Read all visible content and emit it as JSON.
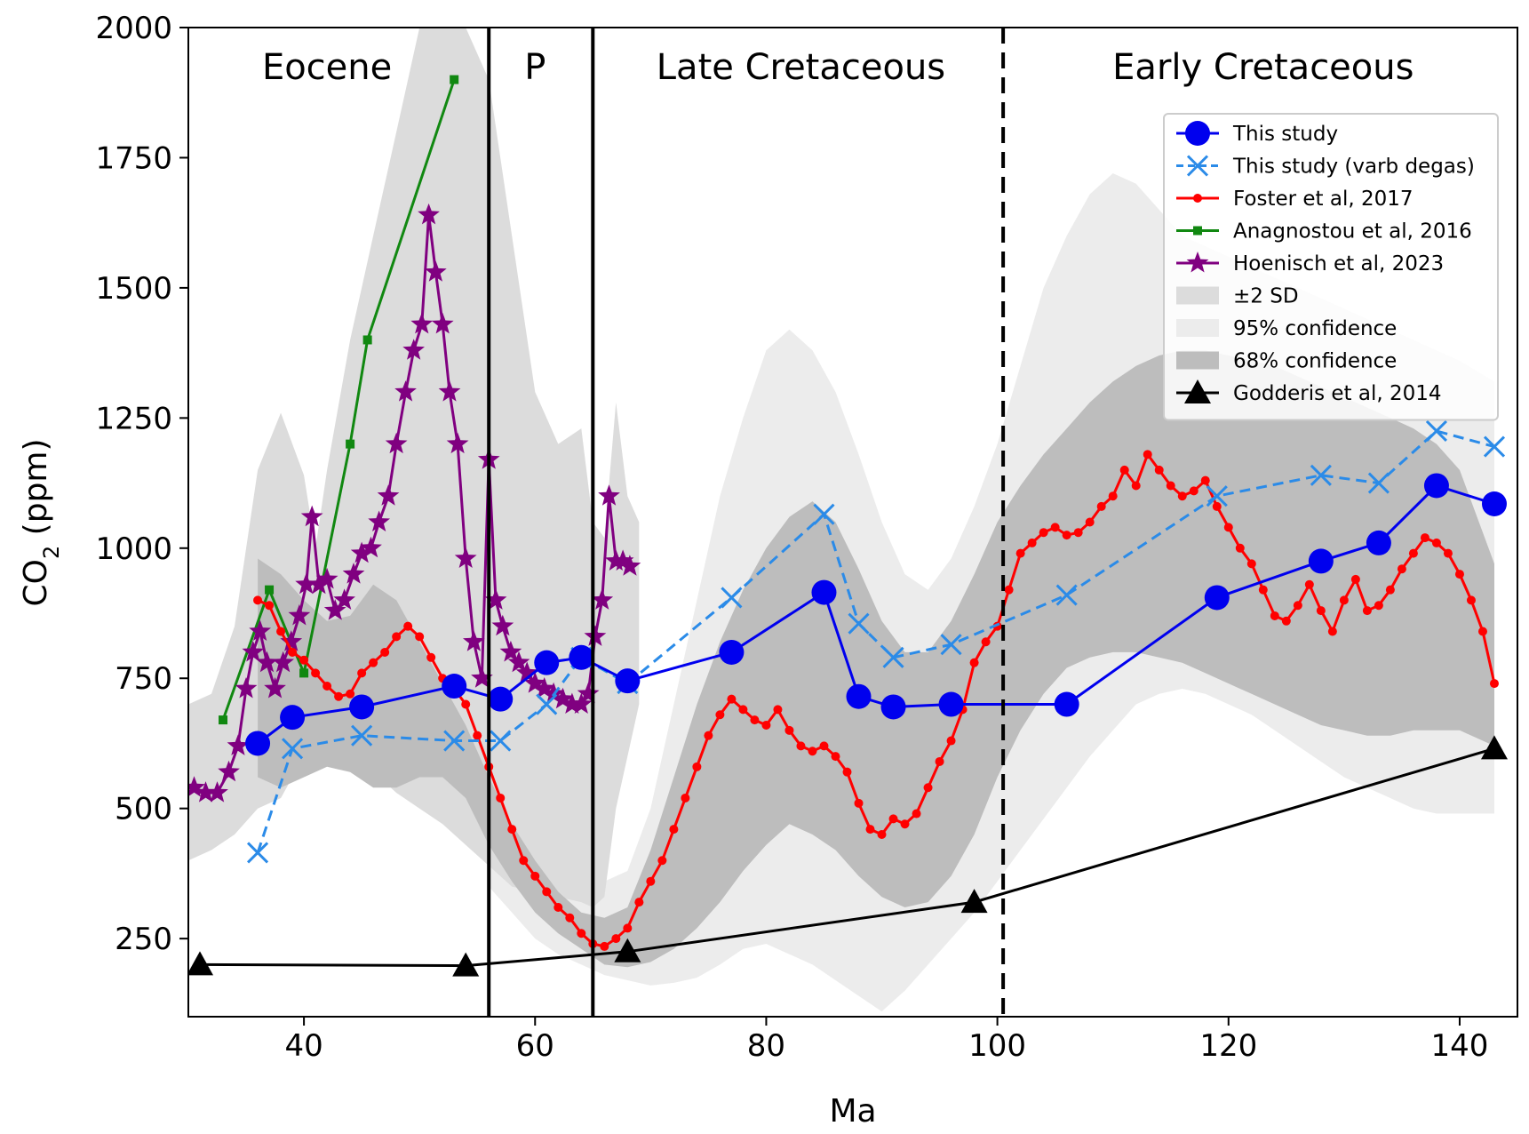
{
  "chart_data": {
    "type": "line",
    "xlabel": "Ma",
    "ylabel": "CO2 (ppm)",
    "xlim": [
      30,
      145
    ],
    "ylim": [
      100,
      2000
    ],
    "xticks": [
      40,
      60,
      80,
      100,
      120,
      140
    ],
    "yticks": [
      250,
      500,
      750,
      1000,
      1250,
      1500,
      1750,
      2000
    ],
    "grid": false,
    "legend_position": "upper-right",
    "boundaries": [
      {
        "x": 56,
        "style": "solid"
      },
      {
        "x": 65,
        "style": "solid"
      },
      {
        "x": 100.5,
        "style": "dashed"
      }
    ],
    "periods": [
      {
        "label": "Eocene",
        "x": 42
      },
      {
        "label": "P",
        "x": 60
      },
      {
        "label": "Late Cretaceous",
        "x": 83
      },
      {
        "label": "Early Cretaceous",
        "x": 123
      }
    ],
    "series": [
      {
        "name": "This study",
        "color": "#0000ee",
        "marker": "circle",
        "dash": "solid",
        "x": [
          36,
          39,
          45,
          53,
          57,
          61,
          64,
          68,
          77,
          85,
          88,
          91,
          96,
          106,
          119,
          128,
          133,
          138,
          143
        ],
        "y": [
          625,
          675,
          695,
          735,
          710,
          780,
          790,
          745,
          800,
          915,
          715,
          695,
          700,
          700,
          905,
          975,
          1010,
          1120,
          1085
        ]
      },
      {
        "name": "This study (varb degas)",
        "color": "#2b8be8",
        "marker": "x",
        "dash": "dashed",
        "x": [
          36,
          39,
          45,
          53,
          57,
          61,
          64,
          68,
          77,
          85,
          88,
          91,
          96,
          106,
          119,
          128,
          133,
          138,
          143
        ],
        "y": [
          415,
          615,
          640,
          630,
          630,
          700,
          790,
          740,
          905,
          1065,
          855,
          790,
          815,
          910,
          1100,
          1140,
          1125,
          1225,
          1195
        ]
      },
      {
        "name": "Foster et al, 2017",
        "color": "#ff0000",
        "marker": "dot",
        "dash": "solid",
        "x": [
          36,
          37,
          38,
          39,
          40,
          41,
          42,
          43,
          44,
          45,
          46,
          47,
          48,
          49,
          50,
          51,
          52,
          53,
          54,
          55,
          56,
          57,
          58,
          59,
          60,
          61,
          62,
          63,
          64,
          65,
          66,
          67,
          68,
          69,
          70,
          71,
          72,
          73,
          74,
          75,
          76,
          77,
          78,
          79,
          80,
          81,
          82,
          83,
          84,
          85,
          86,
          87,
          88,
          89,
          90,
          91,
          92,
          93,
          94,
          95,
          96,
          97,
          98,
          99,
          100,
          101,
          102,
          103,
          104,
          105,
          106,
          107,
          108,
          109,
          110,
          111,
          112,
          113,
          114,
          115,
          116,
          117,
          118,
          119,
          120,
          121,
          122,
          123,
          124,
          125,
          126,
          127,
          128,
          129,
          130,
          131,
          132,
          133,
          134,
          135,
          136,
          137,
          138,
          139,
          140,
          141,
          142,
          143
        ],
        "y": [
          900,
          890,
          840,
          800,
          785,
          760,
          735,
          715,
          720,
          760,
          780,
          800,
          830,
          850,
          830,
          790,
          750,
          730,
          700,
          640,
          580,
          520,
          460,
          400,
          370,
          340,
          310,
          290,
          260,
          240,
          235,
          250,
          270,
          320,
          360,
          400,
          460,
          520,
          580,
          640,
          680,
          710,
          690,
          670,
          660,
          690,
          650,
          620,
          610,
          620,
          600,
          570,
          510,
          460,
          450,
          480,
          470,
          490,
          540,
          590,
          630,
          690,
          780,
          820,
          850,
          920,
          990,
          1010,
          1030,
          1040,
          1025,
          1030,
          1050,
          1080,
          1100,
          1150,
          1120,
          1180,
          1150,
          1120,
          1100,
          1110,
          1130,
          1080,
          1040,
          1000,
          970,
          920,
          870,
          860,
          890,
          930,
          880,
          840,
          900,
          940,
          880,
          890,
          920,
          960,
          990,
          1020,
          1010,
          990,
          950,
          900,
          840,
          740
        ]
      },
      {
        "name": "Anagnostou et al, 2016",
        "color": "#118811",
        "marker": "square",
        "dash": "solid",
        "x": [
          33,
          37,
          40,
          44,
          45.5,
          53
        ],
        "y": [
          670,
          920,
          760,
          1200,
          1400,
          1900
        ]
      },
      {
        "name": "Hoenisch et al, 2023",
        "color": "#800080",
        "marker": "star",
        "dash": "solid",
        "x": [
          30.5,
          31.5,
          32.5,
          33.5,
          34.3,
          35,
          35.6,
          36.2,
          36.8,
          37.5,
          38.2,
          38.9,
          39.6,
          40.2,
          40.7,
          41.3,
          42,
          42.7,
          43.5,
          44.3,
          45,
          45.8,
          46.5,
          47.3,
          48,
          48.8,
          49.5,
          50.2,
          50.8,
          51.4,
          52,
          52.6,
          53.3,
          54,
          54.7,
          55.4,
          56,
          56.6,
          57.2,
          57.9,
          58.6,
          59.3,
          60,
          60.8,
          61.6,
          62.4,
          63.2,
          64,
          64.6,
          65.2,
          65.8,
          66.4,
          67,
          67.6,
          68.2
        ],
        "y": [
          540,
          530,
          530,
          570,
          620,
          730,
          800,
          840,
          780,
          730,
          780,
          820,
          870,
          930,
          1060,
          930,
          940,
          880,
          900,
          950,
          990,
          1000,
          1050,
          1100,
          1200,
          1300,
          1380,
          1430,
          1640,
          1530,
          1430,
          1300,
          1200,
          980,
          820,
          750,
          1170,
          900,
          850,
          800,
          780,
          760,
          740,
          730,
          720,
          710,
          700,
          700,
          720,
          830,
          900,
          1100,
          975,
          975,
          965
        ]
      },
      {
        "name": "Godderis et al, 2014",
        "color": "#000000",
        "marker": "triangle",
        "dash": "solid",
        "x": [
          31,
          54,
          68,
          98,
          143
        ],
        "y": [
          200,
          198,
          225,
          320,
          615
        ]
      }
    ],
    "bands": [
      {
        "name": "±2 SD",
        "color": "#dcdcdc",
        "x": [
          30,
          32,
          34,
          36,
          38,
          39,
          40,
          41,
          42,
          44,
          46,
          48,
          50,
          52,
          54,
          56,
          58,
          60,
          62,
          64,
          65,
          66,
          67,
          68,
          69
        ],
        "upper": [
          700,
          720,
          850,
          1150,
          1260,
          1200,
          1140,
          1000,
          1150,
          1400,
          1600,
          1800,
          2000,
          2000,
          2000,
          1900,
          1600,
          1300,
          1200,
          1230,
          1050,
          1020,
          1280,
          1100,
          1050
        ],
        "lower": [
          400,
          420,
          450,
          500,
          520,
          560,
          600,
          620,
          650,
          620,
          570,
          530,
          500,
          470,
          430,
          390,
          350,
          340,
          330,
          320,
          310,
          330,
          500,
          600,
          700
        ]
      },
      {
        "name": "95% confidence",
        "color": "#ececec",
        "x": [
          56,
          58,
          60,
          62,
          64,
          66,
          68,
          70,
          72,
          74,
          76,
          78,
          80,
          82,
          84,
          86,
          88,
          90,
          92,
          94,
          96,
          98,
          100,
          102,
          104,
          106,
          108,
          110,
          112,
          114,
          116,
          118,
          120,
          122,
          124,
          126,
          128,
          130,
          132,
          134,
          136,
          138,
          140,
          143
        ],
        "upper": [
          520,
          450,
          400,
          380,
          370,
          360,
          380,
          500,
          700,
          900,
          1100,
          1250,
          1380,
          1420,
          1380,
          1300,
          1180,
          1050,
          950,
          920,
          980,
          1080,
          1200,
          1350,
          1500,
          1600,
          1680,
          1720,
          1700,
          1650,
          1600,
          1580,
          1560,
          1540,
          1520,
          1500,
          1480,
          1460,
          1440,
          1420,
          1400,
          1380,
          1360,
          1320
        ],
        "lower": [
          350,
          300,
          250,
          220,
          200,
          180,
          170,
          160,
          165,
          175,
          200,
          230,
          240,
          220,
          200,
          170,
          140,
          110,
          150,
          200,
          250,
          300,
          360,
          420,
          480,
          540,
          600,
          650,
          700,
          720,
          730,
          720,
          700,
          680,
          650,
          620,
          590,
          560,
          540,
          520,
          500,
          490,
          490,
          490
        ]
      },
      {
        "name": "68% confidence",
        "color": "#bdbdbd",
        "x": [
          36,
          38,
          40,
          42,
          44,
          46,
          48,
          50,
          52,
          54,
          56,
          58,
          60,
          62,
          64,
          66,
          68,
          70,
          72,
          74,
          76,
          78,
          80,
          82,
          84,
          86,
          88,
          90,
          92,
          94,
          96,
          98,
          100,
          102,
          104,
          106,
          108,
          110,
          112,
          114,
          116,
          118,
          120,
          122,
          124,
          126,
          128,
          130,
          132,
          134,
          136,
          138,
          140,
          143
        ],
        "upper": [
          980,
          950,
          900,
          860,
          870,
          930,
          900,
          820,
          740,
          660,
          560,
          470,
          400,
          340,
          300,
          290,
          310,
          420,
          560,
          700,
          820,
          920,
          1000,
          1060,
          1090,
          1050,
          960,
          860,
          800,
          800,
          860,
          950,
          1050,
          1120,
          1180,
          1230,
          1280,
          1320,
          1350,
          1370,
          1380,
          1380,
          1370,
          1360,
          1350,
          1330,
          1310,
          1290,
          1270,
          1250,
          1230,
          1200,
          1150,
          970
        ],
        "lower": [
          560,
          540,
          560,
          580,
          570,
          540,
          540,
          560,
          560,
          520,
          430,
          360,
          300,
          260,
          230,
          200,
          195,
          205,
          230,
          270,
          320,
          380,
          430,
          470,
          450,
          420,
          370,
          330,
          310,
          320,
          370,
          450,
          560,
          650,
          720,
          770,
          790,
          800,
          800,
          790,
          780,
          760,
          740,
          720,
          700,
          680,
          660,
          650,
          640,
          640,
          650,
          650,
          650,
          620
        ]
      }
    ]
  }
}
